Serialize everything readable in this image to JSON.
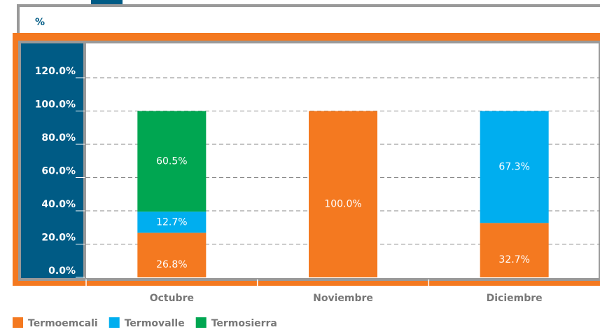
{
  "chart_data": {
    "type": "stacked_bar",
    "ylabel": "%",
    "categories": [
      "Octubre",
      "Noviembre",
      "Diciembre"
    ],
    "series": [
      {
        "name": "Termoemcali",
        "color": "#f47920",
        "values": [
          26.8,
          100.0,
          32.7
        ],
        "value_labels": [
          "26.8%",
          "100.0%",
          "32.7%"
        ]
      },
      {
        "name": "Termovalle",
        "color": "#00aeef",
        "values": [
          12.7,
          0,
          67.3
        ],
        "value_labels": [
          "12.7%",
          null,
          "67.3%"
        ]
      },
      {
        "name": "Termosierra",
        "color": "#00a651",
        "values": [
          60.5,
          0,
          0
        ],
        "value_labels": [
          "60.5%",
          null,
          null
        ]
      }
    ],
    "ylim": [
      0,
      120
    ],
    "yticks": [
      {
        "value": 0,
        "label": "0.0%"
      },
      {
        "value": 20,
        "label": "20.0%"
      },
      {
        "value": 40,
        "label": "40.0%"
      },
      {
        "value": 60,
        "label": "60.0%"
      },
      {
        "value": 80,
        "label": "80.0%"
      },
      {
        "value": 100,
        "label": "100.0%"
      },
      {
        "value": 120,
        "label": "120.0%"
      }
    ],
    "grid": true
  }
}
